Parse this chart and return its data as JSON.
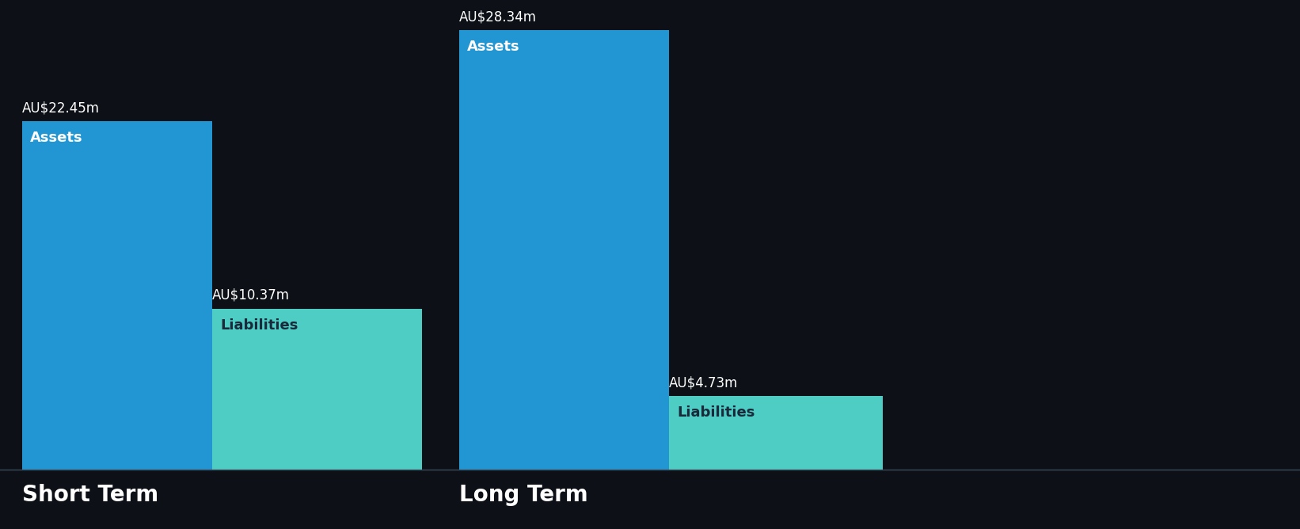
{
  "background_color": "#0d1117",
  "short_term": {
    "label": "Short Term",
    "assets_value": 22.45,
    "assets_label": "AU$22.45m",
    "assets_inner": "Assets",
    "assets_color": "#2196d3",
    "liabilities_value": 10.37,
    "liabilities_label": "AU$10.37m",
    "liabilities_inner": "Liabilities",
    "liabilities_color": "#4ecdc4"
  },
  "long_term": {
    "label": "Long Term",
    "assets_value": 28.34,
    "assets_label": "AU$28.34m",
    "assets_inner": "Assets",
    "assets_color": "#2196d3",
    "liabilities_value": 4.73,
    "liabilities_label": "AU$4.73m",
    "liabilities_inner": "Liabilities",
    "liabilities_color": "#4ecdc4"
  },
  "value_label_color": "#ffffff",
  "inner_label_color_assets": "#ffffff",
  "inner_label_color_liabilities": "#1a2a3a",
  "section_label_color": "#ffffff",
  "value_label_fontsize": 12,
  "inner_label_fontsize": 13,
  "section_label_fontsize": 20
}
